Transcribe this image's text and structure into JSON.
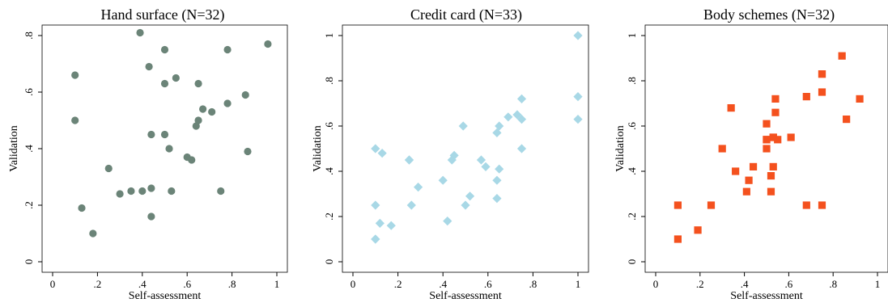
{
  "chart_data": [
    {
      "type": "scatter",
      "title": "Hand surface (N=32)",
      "xlabel": "Self-assessment",
      "ylabel": "Validation",
      "xlim": [
        0,
        1
      ],
      "ylim": [
        0,
        0.8
      ],
      "xticks": [
        "0",
        ".2",
        ".4",
        ".6",
        ".8",
        "1"
      ],
      "xtick_values": [
        0,
        0.2,
        0.4,
        0.6,
        0.8,
        1
      ],
      "yticks": [
        "0",
        ".2",
        ".4",
        ".6",
        ".8"
      ],
      "ytick_values": [
        0,
        0.2,
        0.4,
        0.6,
        0.8
      ],
      "marker": "circle",
      "color": "#6b8478",
      "grid": false,
      "points": [
        [
          0.39,
          0.81
        ],
        [
          0.1,
          0.66
        ],
        [
          0.43,
          0.69
        ],
        [
          0.5,
          0.75
        ],
        [
          0.78,
          0.75
        ],
        [
          0.96,
          0.77
        ],
        [
          0.55,
          0.65
        ],
        [
          0.5,
          0.63
        ],
        [
          0.65,
          0.63
        ],
        [
          0.86,
          0.59
        ],
        [
          0.78,
          0.56
        ],
        [
          0.67,
          0.54
        ],
        [
          0.71,
          0.53
        ],
        [
          0.1,
          0.5
        ],
        [
          0.65,
          0.5
        ],
        [
          0.64,
          0.48
        ],
        [
          0.44,
          0.45
        ],
        [
          0.5,
          0.45
        ],
        [
          0.52,
          0.4
        ],
        [
          0.87,
          0.39
        ],
        [
          0.6,
          0.37
        ],
        [
          0.62,
          0.36
        ],
        [
          0.25,
          0.33
        ],
        [
          0.44,
          0.26
        ],
        [
          0.4,
          0.25
        ],
        [
          0.35,
          0.25
        ],
        [
          0.53,
          0.25
        ],
        [
          0.75,
          0.25
        ],
        [
          0.3,
          0.24
        ],
        [
          0.13,
          0.19
        ],
        [
          0.44,
          0.16
        ],
        [
          0.18,
          0.1
        ]
      ]
    },
    {
      "type": "scatter",
      "title": "Credit card (N=33)",
      "xlabel": "Self-assessment",
      "ylabel": "Validation",
      "xlim": [
        0,
        1
      ],
      "ylim": [
        0,
        1
      ],
      "xticks": [
        "0",
        ".2",
        ".4",
        ".6",
        ".8",
        "1"
      ],
      "xtick_values": [
        0,
        0.2,
        0.4,
        0.6,
        0.8,
        1
      ],
      "yticks": [
        "0",
        ".2",
        ".4",
        ".6",
        ".8",
        "1"
      ],
      "ytick_values": [
        0,
        0.2,
        0.4,
        0.6,
        0.8,
        1
      ],
      "marker": "diamond",
      "color": "#a8d8e6",
      "grid": false,
      "points": [
        [
          1.0,
          1.0
        ],
        [
          1.0,
          0.73
        ],
        [
          0.75,
          0.72
        ],
        [
          0.69,
          0.64
        ],
        [
          0.73,
          0.65
        ],
        [
          0.75,
          0.63
        ],
        [
          1.0,
          0.63
        ],
        [
          0.49,
          0.6
        ],
        [
          0.65,
          0.6
        ],
        [
          0.64,
          0.57
        ],
        [
          0.1,
          0.5
        ],
        [
          0.75,
          0.5
        ],
        [
          0.13,
          0.48
        ],
        [
          0.45,
          0.47
        ],
        [
          0.25,
          0.45
        ],
        [
          0.44,
          0.45
        ],
        [
          0.57,
          0.45
        ],
        [
          0.59,
          0.42
        ],
        [
          0.65,
          0.41
        ],
        [
          0.4,
          0.36
        ],
        [
          0.64,
          0.36
        ],
        [
          0.29,
          0.33
        ],
        [
          0.52,
          0.29
        ],
        [
          0.64,
          0.28
        ],
        [
          0.1,
          0.25
        ],
        [
          0.26,
          0.25
        ],
        [
          0.5,
          0.25
        ],
        [
          0.42,
          0.18
        ],
        [
          0.12,
          0.17
        ],
        [
          0.17,
          0.16
        ],
        [
          0.1,
          0.1
        ],
        [
          0.1,
          0.1
        ],
        [
          0.25,
          0.45
        ]
      ]
    },
    {
      "type": "scatter",
      "title": "Body schemes (N=32)",
      "xlabel": "Self-assessment",
      "ylabel": "Validation",
      "xlim": [
        0,
        1
      ],
      "ylim": [
        0,
        1
      ],
      "xticks": [
        "0",
        ".2",
        ".4",
        ".6",
        ".8",
        "1"
      ],
      "xtick_values": [
        0,
        0.2,
        0.4,
        0.6,
        0.8,
        1
      ],
      "yticks": [
        "0",
        ".2",
        ".4",
        ".6",
        ".8",
        "1"
      ],
      "ytick_values": [
        0,
        0.2,
        0.4,
        0.6,
        0.8,
        1
      ],
      "marker": "square",
      "color": "#f4511e",
      "grid": false,
      "points": [
        [
          0.84,
          0.91
        ],
        [
          0.75,
          0.83
        ],
        [
          0.75,
          0.75
        ],
        [
          0.68,
          0.73
        ],
        [
          0.92,
          0.72
        ],
        [
          0.54,
          0.72
        ],
        [
          0.34,
          0.68
        ],
        [
          0.54,
          0.66
        ],
        [
          0.86,
          0.63
        ],
        [
          0.5,
          0.61
        ],
        [
          0.53,
          0.55
        ],
        [
          0.61,
          0.55
        ],
        [
          0.5,
          0.54
        ],
        [
          0.55,
          0.54
        ],
        [
          0.3,
          0.5
        ],
        [
          0.5,
          0.5
        ],
        [
          0.44,
          0.42
        ],
        [
          0.53,
          0.42
        ],
        [
          0.36,
          0.4
        ],
        [
          0.52,
          0.38
        ],
        [
          0.42,
          0.36
        ],
        [
          0.41,
          0.31
        ],
        [
          0.52,
          0.31
        ],
        [
          0.1,
          0.25
        ],
        [
          0.25,
          0.25
        ],
        [
          0.68,
          0.25
        ],
        [
          0.75,
          0.25
        ],
        [
          0.19,
          0.14
        ],
        [
          0.1,
          0.1
        ],
        [
          0.53,
          0.55
        ],
        [
          0.5,
          0.54
        ],
        [
          0.75,
          0.83
        ]
      ]
    }
  ]
}
